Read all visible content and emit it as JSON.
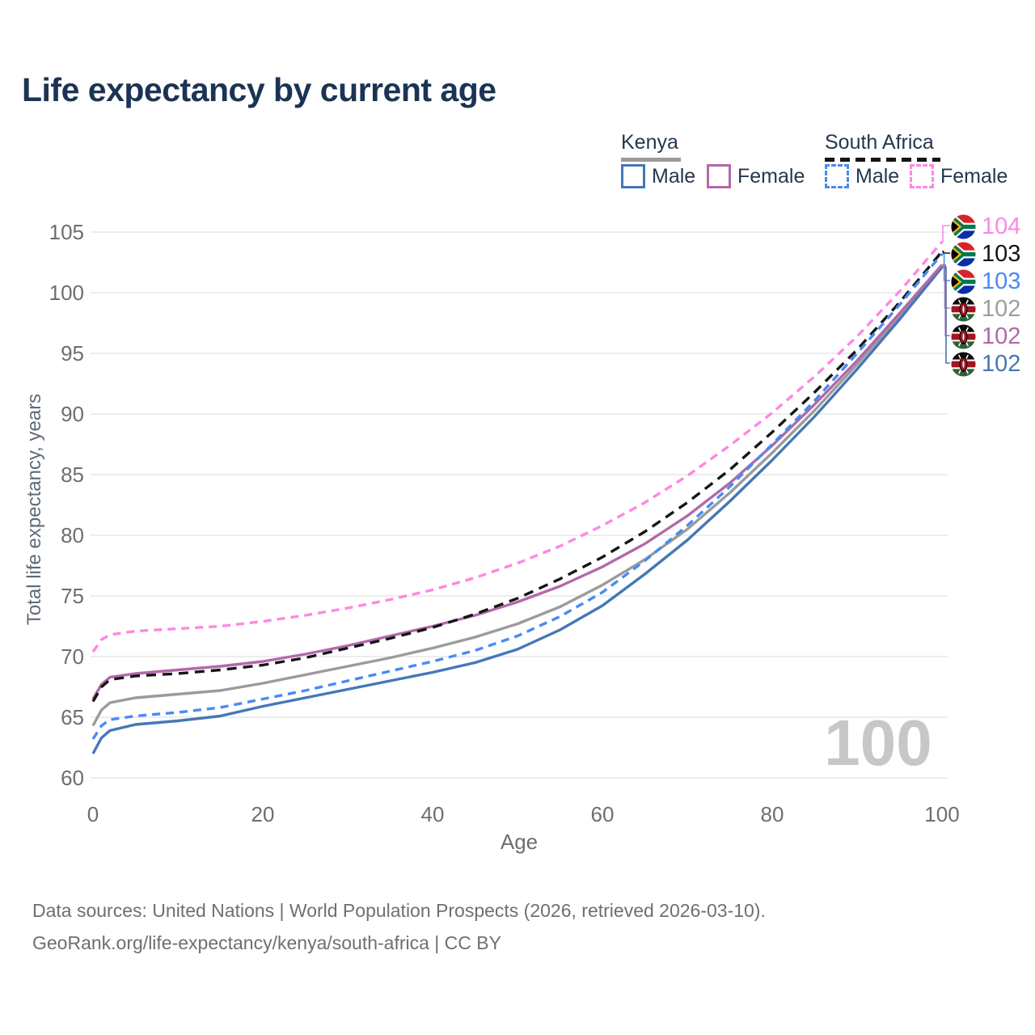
{
  "title": "Life expectancy by current age",
  "legend": {
    "groups": [
      {
        "label": "Kenya",
        "line_style": "solid",
        "underline_color": "#9b9b9b",
        "items": [
          {
            "label": "Male",
            "color": "#4577b6",
            "style": "solid"
          },
          {
            "label": "Female",
            "color": "#b269aa",
            "style": "solid"
          }
        ]
      },
      {
        "label": "South Africa",
        "line_style": "dashed",
        "underline_color": "#151515",
        "items": [
          {
            "label": "Male",
            "color": "#4a8af4",
            "style": "dashed"
          },
          {
            "label": "Female",
            "color": "#ff87e3",
            "style": "dashed"
          }
        ]
      }
    ]
  },
  "watermark": "100",
  "end_labels": [
    {
      "value": "104",
      "color": "#ff87e3",
      "flag": "south-africa"
    },
    {
      "value": "103",
      "color": "#151515",
      "flag": "south-africa"
    },
    {
      "value": "103",
      "color": "#4a8af4",
      "flag": "south-africa"
    },
    {
      "value": "102",
      "color": "#9e9e9e",
      "flag": "kenya"
    },
    {
      "value": "102",
      "color": "#b269aa",
      "flag": "kenya"
    },
    {
      "value": "102",
      "color": "#4577b6",
      "flag": "kenya"
    }
  ],
  "footer": {
    "line1": "Data sources: United Nations | World Population Prospects (2026, retrieved 2026-03-10).",
    "line2": "GeoRank.org/life-expectancy/kenya/south-africa | CC BY"
  },
  "chart_data": {
    "type": "line",
    "title": "Life expectancy by current age",
    "xlabel": "Age",
    "ylabel": "Total life expectancy, years",
    "xlim": [
      0,
      100
    ],
    "ylim": [
      60,
      105
    ],
    "xticks": [
      0,
      20,
      40,
      60,
      80,
      100
    ],
    "yticks": [
      60,
      65,
      70,
      75,
      80,
      85,
      90,
      95,
      100,
      105
    ],
    "grid": "horizontal-only",
    "legend_position": "top-right",
    "ages": [
      0,
      1,
      2,
      5,
      10,
      15,
      20,
      25,
      30,
      35,
      40,
      45,
      50,
      55,
      60,
      65,
      70,
      75,
      80,
      85,
      90,
      95,
      100
    ],
    "series": [
      {
        "name": "Kenya Male",
        "line": "solid",
        "color": "#4577b6",
        "end_label": "102",
        "values": [
          62.0,
          63.3,
          63.9,
          64.4,
          64.7,
          65.1,
          65.9,
          66.6,
          67.3,
          68.0,
          68.7,
          69.5,
          70.6,
          72.2,
          74.2,
          76.8,
          79.6,
          82.8,
          86.2,
          89.8,
          93.7,
          97.8,
          102.1
        ]
      },
      {
        "name": "Kenya Female",
        "line": "solid",
        "color": "#b269aa",
        "end_label": "102",
        "values": [
          66.5,
          67.7,
          68.3,
          68.6,
          68.9,
          69.2,
          69.6,
          70.2,
          70.9,
          71.7,
          72.5,
          73.4,
          74.5,
          75.8,
          77.4,
          79.3,
          81.6,
          84.3,
          87.4,
          90.8,
          94.4,
          98.3,
          102.3
        ]
      },
      {
        "name": "Kenya (both sexes)",
        "line": "solid",
        "color": "#9b9b9b",
        "end_label": "102",
        "values": [
          64.3,
          65.6,
          66.2,
          66.6,
          66.9,
          67.2,
          67.8,
          68.5,
          69.2,
          69.9,
          70.7,
          71.6,
          72.7,
          74.1,
          75.9,
          78.0,
          80.5,
          83.5,
          86.8,
          90.3,
          94.1,
          98.1,
          102.2
        ]
      },
      {
        "name": "South Africa (both sexes)",
        "line": "dashed",
        "color": "#151515",
        "end_label": "103",
        "values": [
          66.3,
          67.5,
          68.1,
          68.4,
          68.6,
          68.9,
          69.3,
          69.9,
          70.7,
          71.5,
          72.4,
          73.5,
          74.8,
          76.4,
          78.2,
          80.3,
          82.7,
          85.4,
          88.5,
          91.8,
          95.3,
          99.2,
          103.4
        ]
      },
      {
        "name": "South Africa Male",
        "line": "dashed",
        "color": "#4a8af4",
        "end_label": "103",
        "values": [
          63.2,
          64.3,
          64.8,
          65.1,
          65.4,
          65.8,
          66.5,
          67.2,
          68.0,
          68.8,
          69.6,
          70.5,
          71.7,
          73.3,
          75.3,
          77.9,
          80.8,
          84.0,
          87.5,
          91.1,
          95.0,
          99.0,
          103.2
        ]
      },
      {
        "name": "South Africa Female",
        "line": "dashed",
        "color": "#ff87e3",
        "end_label": "104",
        "values": [
          70.4,
          71.4,
          71.8,
          72.1,
          72.3,
          72.5,
          72.9,
          73.4,
          74.0,
          74.7,
          75.5,
          76.5,
          77.7,
          79.1,
          80.8,
          82.7,
          84.9,
          87.4,
          90.1,
          93.1,
          96.4,
          100.1,
          104.2
        ]
      }
    ]
  }
}
